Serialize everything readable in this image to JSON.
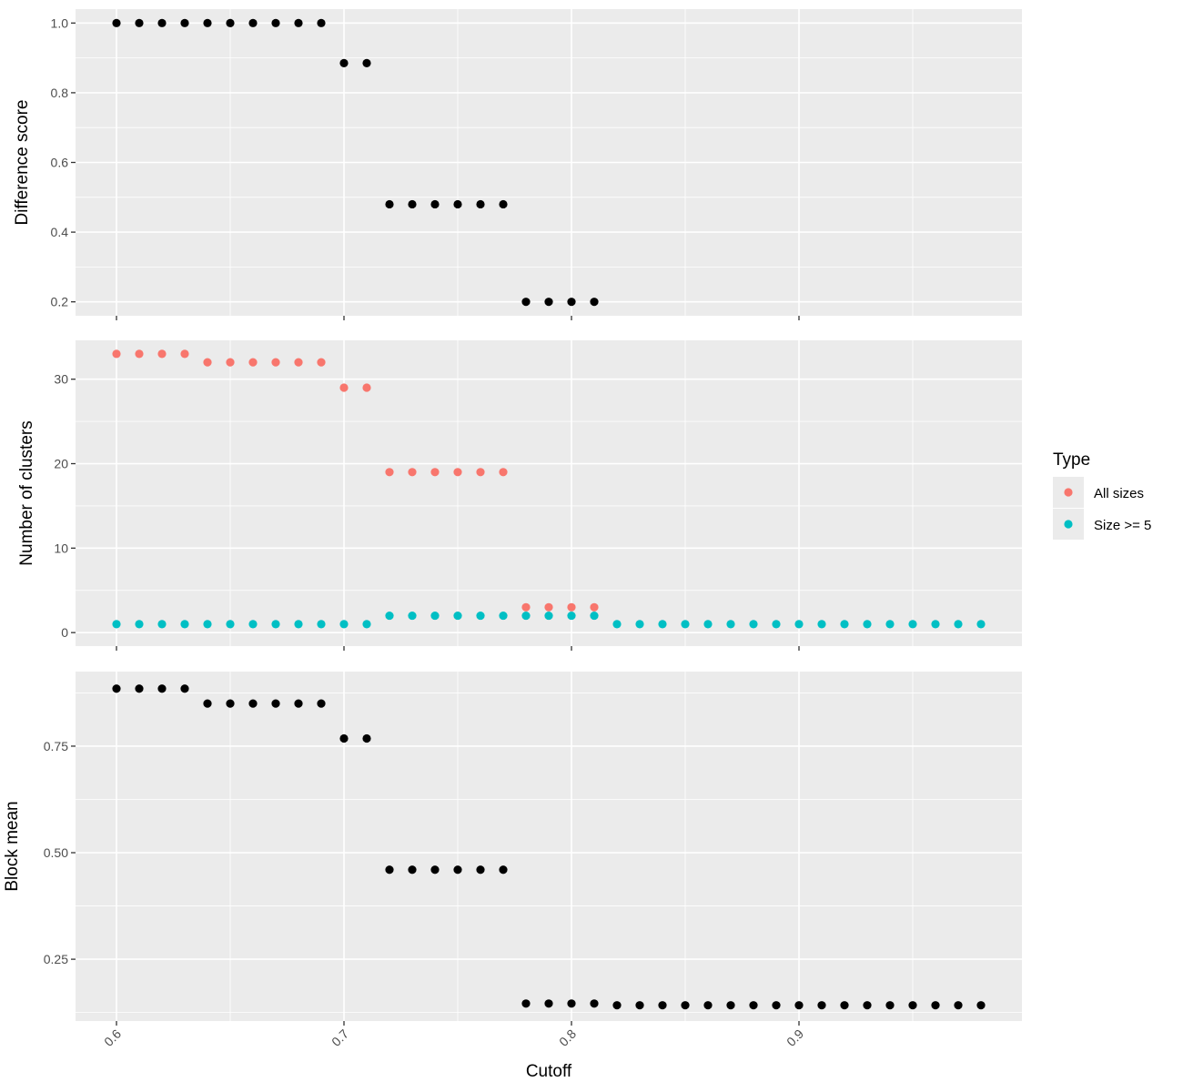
{
  "chart_data": {
    "type": "scatter",
    "layout": "vertically stacked facets with shared x axis",
    "xlabel": "Cutoff",
    "xlim": [
      0.582,
      0.998
    ],
    "x_ticks": [
      0.6,
      0.7,
      0.8,
      0.9
    ],
    "x_tick_labels": [
      "0.6",
      "0.7",
      "0.8",
      "0.9"
    ],
    "x_tick_label_rotation": -45,
    "grid": true,
    "panels": [
      {
        "id": "difference",
        "ylabel": "Difference score",
        "ylim": [
          0.16,
          1.04
        ],
        "y_ticks": [
          0.2,
          0.4,
          0.6,
          0.8,
          1.0
        ],
        "y_tick_labels": [
          "0.2",
          "0.4",
          "0.6",
          "0.8",
          "1.0"
        ],
        "series": [
          {
            "color": "#000000",
            "x": [
              0.6,
              0.61,
              0.62,
              0.63,
              0.64,
              0.65,
              0.66,
              0.67,
              0.68,
              0.69,
              0.7,
              0.71,
              0.72,
              0.73,
              0.74,
              0.75,
              0.76,
              0.77,
              0.78,
              0.79,
              0.8,
              0.81
            ],
            "y": [
              1.0,
              1.0,
              1.0,
              1.0,
              1.0,
              1.0,
              1.0,
              1.0,
              1.0,
              1.0,
              0.885,
              0.885,
              0.48,
              0.48,
              0.48,
              0.48,
              0.48,
              0.48,
              0.2,
              0.2,
              0.2,
              0.2
            ]
          }
        ]
      },
      {
        "id": "clusters",
        "ylabel": "Number of clusters",
        "ylim": [
          -1.6,
          34.6
        ],
        "y_ticks": [
          0,
          10,
          20,
          30
        ],
        "y_tick_labels": [
          "0",
          "10",
          "20",
          "30"
        ],
        "series": [
          {
            "name": "All sizes",
            "color": "#F8766D",
            "x": [
              0.6,
              0.61,
              0.62,
              0.63,
              0.64,
              0.65,
              0.66,
              0.67,
              0.68,
              0.69,
              0.7,
              0.71,
              0.72,
              0.73,
              0.74,
              0.75,
              0.76,
              0.77,
              0.78,
              0.79,
              0.8,
              0.81
            ],
            "y": [
              33,
              33,
              33,
              33,
              32,
              32,
              32,
              32,
              32,
              32,
              29,
              29,
              19,
              19,
              19,
              19,
              19,
              19,
              3,
              3,
              3,
              3
            ]
          },
          {
            "name": "Size >= 5",
            "color": "#00BFC4",
            "x": [
              0.6,
              0.61,
              0.62,
              0.63,
              0.64,
              0.65,
              0.66,
              0.67,
              0.68,
              0.69,
              0.7,
              0.71,
              0.72,
              0.73,
              0.74,
              0.75,
              0.76,
              0.77,
              0.78,
              0.79,
              0.8,
              0.81,
              0.82,
              0.83,
              0.84,
              0.85,
              0.86,
              0.87,
              0.88,
              0.89,
              0.9,
              0.91,
              0.92,
              0.93,
              0.94,
              0.95,
              0.96,
              0.97,
              0.98
            ],
            "y": [
              1,
              1,
              1,
              1,
              1,
              1,
              1,
              1,
              1,
              1,
              1,
              1,
              2,
              2,
              2,
              2,
              2,
              2,
              2,
              2,
              2,
              2,
              1,
              1,
              1,
              1,
              1,
              1,
              1,
              1,
              1,
              1,
              1,
              1,
              1,
              1,
              1,
              1,
              1
            ]
          }
        ]
      },
      {
        "id": "blockmean",
        "ylabel": "Block mean",
        "ylim": [
          0.105,
          0.925
        ],
        "y_ticks": [
          0.25,
          0.5,
          0.75
        ],
        "y_tick_labels": [
          "0.25",
          "0.50",
          "0.75"
        ],
        "series": [
          {
            "color": "#000000",
            "x": [
              0.6,
              0.61,
              0.62,
              0.63,
              0.64,
              0.65,
              0.66,
              0.67,
              0.68,
              0.69,
              0.7,
              0.71,
              0.72,
              0.73,
              0.74,
              0.75,
              0.76,
              0.77,
              0.78,
              0.79,
              0.8,
              0.81,
              0.82,
              0.83,
              0.84,
              0.85,
              0.86,
              0.87,
              0.88,
              0.89,
              0.9,
              0.91,
              0.92,
              0.93,
              0.94,
              0.95,
              0.96,
              0.97,
              0.98
            ],
            "y": [
              0.885,
              0.885,
              0.885,
              0.885,
              0.85,
              0.85,
              0.85,
              0.85,
              0.85,
              0.85,
              0.768,
              0.768,
              0.46,
              0.46,
              0.46,
              0.46,
              0.46,
              0.46,
              0.146,
              0.146,
              0.146,
              0.146,
              0.142,
              0.142,
              0.142,
              0.142,
              0.142,
              0.142,
              0.142,
              0.142,
              0.142,
              0.142,
              0.142,
              0.142,
              0.142,
              0.142,
              0.142,
              0.142,
              0.142
            ]
          }
        ]
      }
    ],
    "legend": {
      "title": "Type",
      "placement": "right",
      "entries": [
        {
          "label": "All sizes",
          "color": "#F8766D"
        },
        {
          "label": "Size >= 5",
          "color": "#00BFC4"
        }
      ]
    }
  }
}
